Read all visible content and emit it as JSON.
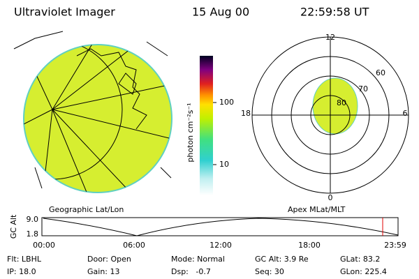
{
  "header": {
    "title": "Ultraviolet Imager",
    "date": "15 Aug 00",
    "time": "22:59:58 UT"
  },
  "colorbar": {
    "label": "photon cm⁻²s⁻¹",
    "ticks": [
      "100",
      "10"
    ]
  },
  "panels": {
    "left": "Geographic Lat/Lon",
    "right": "Apex MLat/MLT"
  },
  "polar": {
    "mlt_labels": [
      "12",
      "18",
      "6",
      "0"
    ],
    "lat_labels": [
      "60",
      "70",
      "80"
    ]
  },
  "altitude": {
    "label": "GC Alt",
    "ticks": [
      "9.0",
      "1.8"
    ],
    "times": [
      "00:00",
      "06:00",
      "12:00",
      "18:00",
      "23:59"
    ]
  },
  "status": [
    [
      "Flt: LBHL",
      "IP: 18.0"
    ],
    [
      "Door: Open",
      "Gain: 13"
    ],
    [
      "Mode: Normal",
      "Dsp:   -0.7"
    ],
    [
      "GC Alt: 3.9 Re",
      "Seq: 30"
    ],
    [
      "GLat: 83.2",
      "GLon: 225.4"
    ]
  ]
}
